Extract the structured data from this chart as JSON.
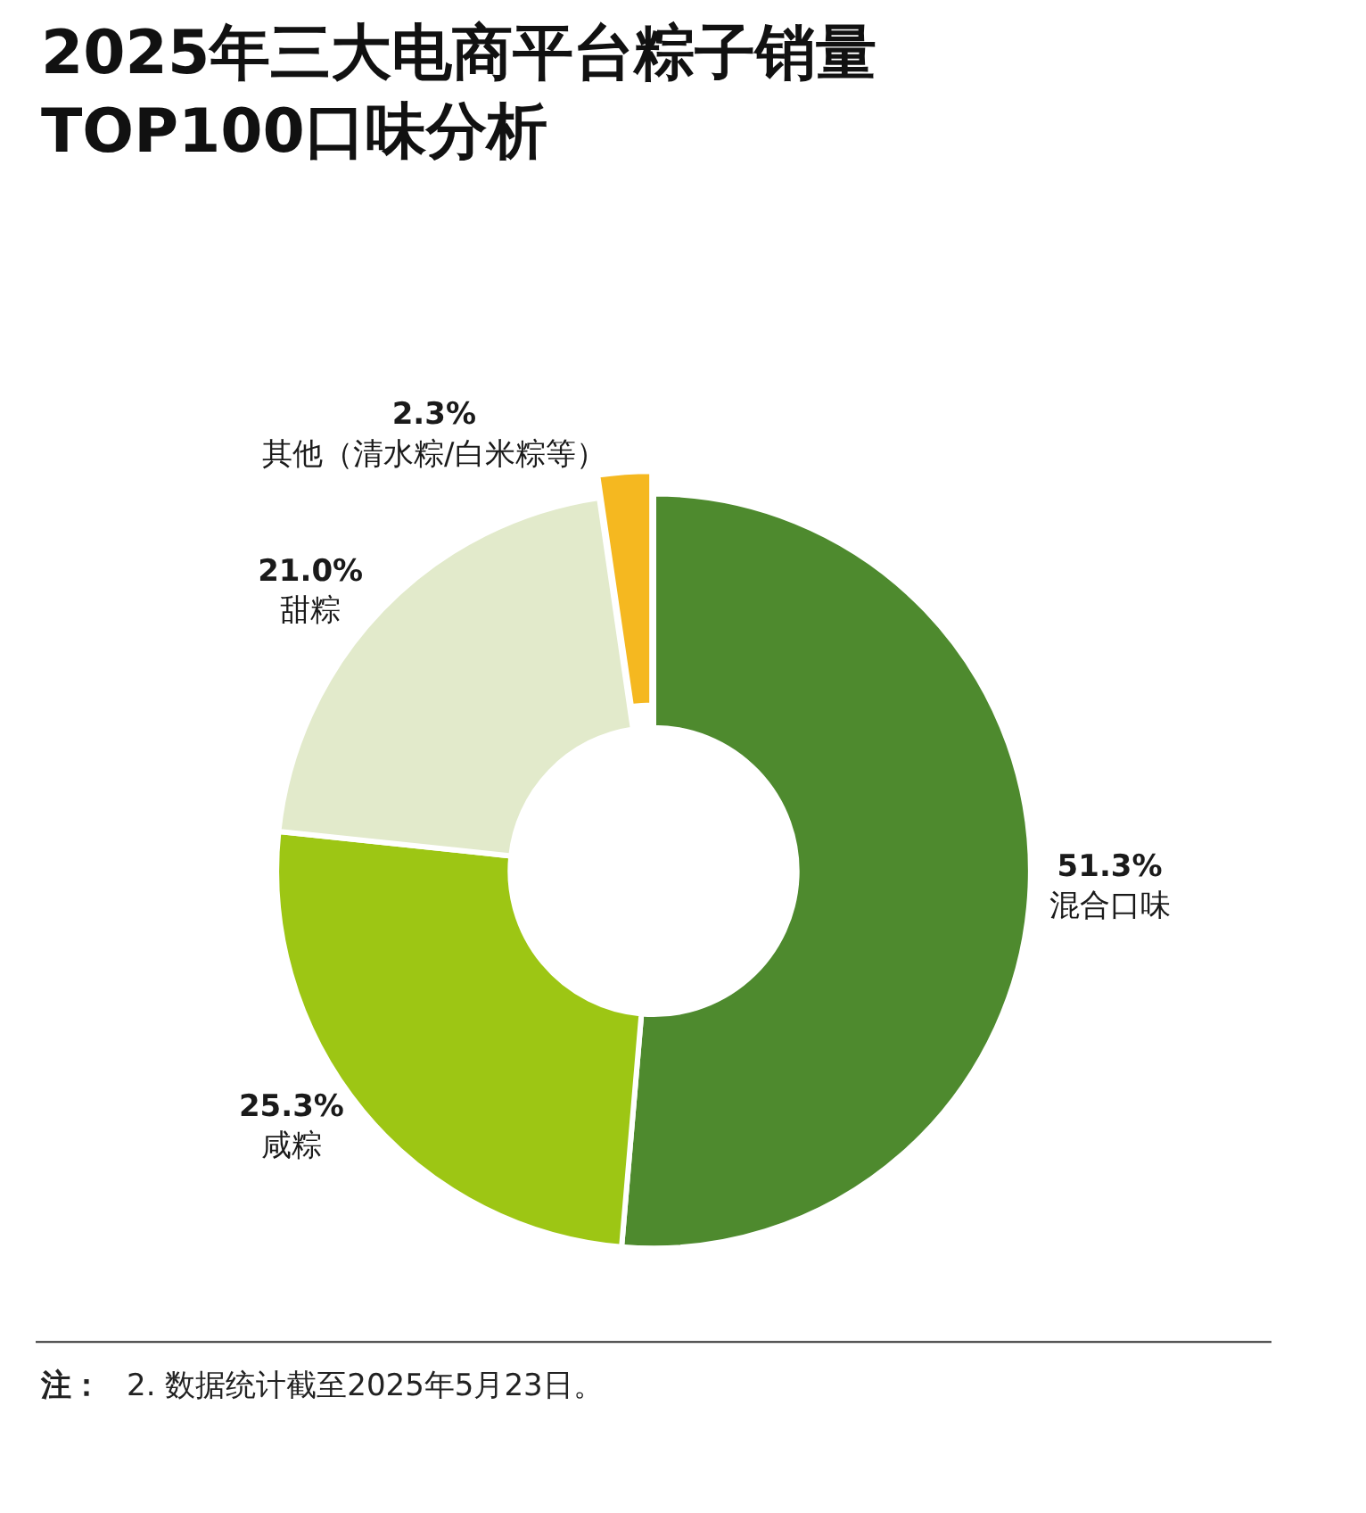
{
  "chart_data": {
    "type": "donut",
    "title": "2025年三大电商平台粽子销量\nTOP100口味分析",
    "categories": [
      "混合口味",
      "咸粽",
      "甜粽",
      "其他（清水粽/白米粽等）"
    ],
    "values": [
      51.3,
      25.3,
      21.0,
      2.3
    ],
    "value_labels": [
      "51.3%",
      "25.3%",
      "21.0%",
      "2.3%"
    ],
    "colors": [
      "#4e8a2e",
      "#9dc614",
      "#e2eacb",
      "#f5b820"
    ],
    "legend": false,
    "annotations": [
      "注：",
      "2. 数据统计截至2025年5月23日。"
    ]
  }
}
